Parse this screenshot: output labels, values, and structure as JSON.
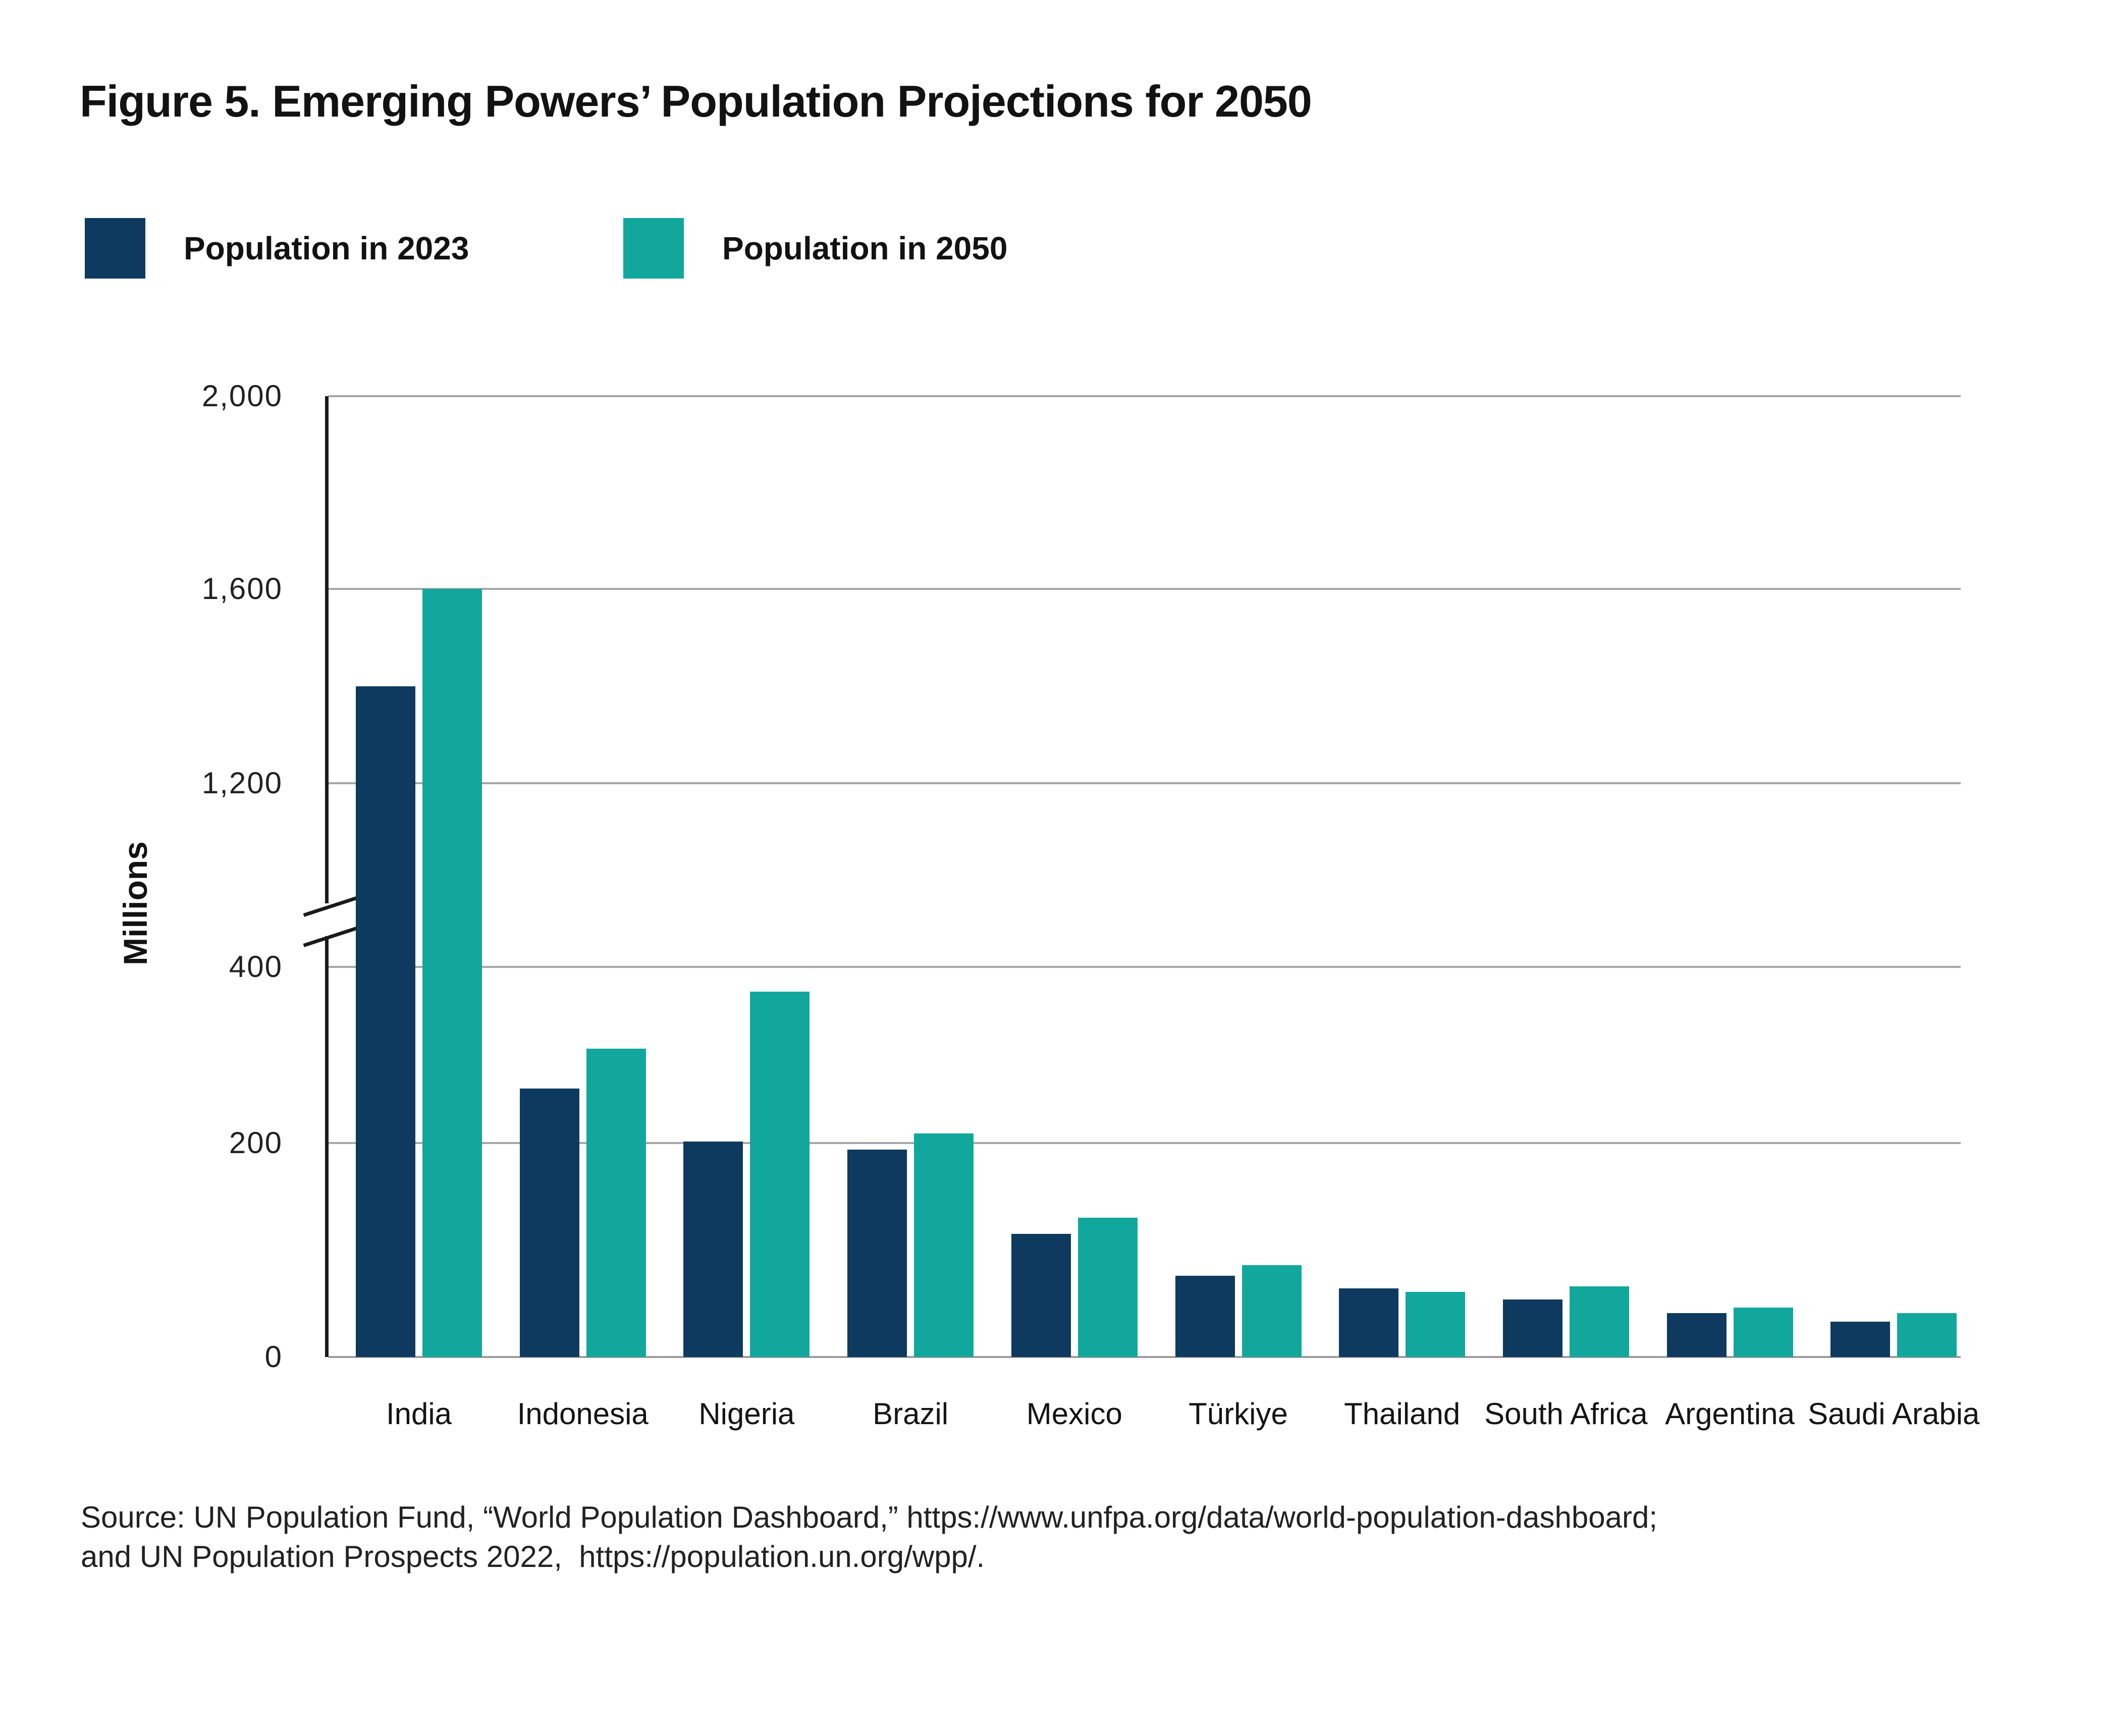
{
  "figure": {
    "title": "Figure 5. Emerging Powers’ Population Projections for 2050"
  },
  "chart_data": {
    "type": "bar",
    "title": "Figure 5. Emerging Powers’ Population Projections for 2050",
    "xlabel": "",
    "ylabel": "Millions",
    "categories": [
      "India",
      "Indonesia",
      "Nigeria",
      "Brazil",
      "Mexico",
      "Türkiye",
      "Thailand",
      "South Africa",
      "Argentina",
      "Saudi Arabia"
    ],
    "series": [
      {
        "name": "Population in 2023",
        "color": "#0d3a5e",
        "values": [
          1400,
          262,
          202,
          194,
          115,
          76,
          64,
          54,
          41,
          33
        ]
      },
      {
        "name": "Population in 2050",
        "color": "#12a79d",
        "values": [
          1600,
          307,
          372,
          211,
          130,
          86,
          61,
          66,
          46,
          41
        ]
      }
    ],
    "y_axis": {
      "unit": "millions",
      "ticks": [
        {
          "value": 0,
          "label": "0"
        },
        {
          "value": 200,
          "label": "200"
        },
        {
          "value": 400,
          "label": "400"
        },
        {
          "value": 1200,
          "label": "1,200"
        },
        {
          "value": 1600,
          "label": "1,600"
        },
        {
          "value": 2000,
          "label": "2,000"
        }
      ],
      "axis_break_between": [
        400,
        1200
      ],
      "range_drawn": [
        0,
        2000
      ]
    },
    "legend_position": "top-left",
    "grid": true
  },
  "source": {
    "line1": "Source: UN Population Fund, “World Population Dashboard,” https://www.unfpa.org/data/world-population-dashboard;",
    "line2": "and UN Population Prospects 2022,  https://population.un.org/wpp/."
  },
  "colors": {
    "bar_2023": "#0d3a5e",
    "bar_2050": "#12a79d",
    "gridline": "#a6a6a6",
    "axis": "#1a1a1a",
    "text": "#1a1a1a"
  }
}
